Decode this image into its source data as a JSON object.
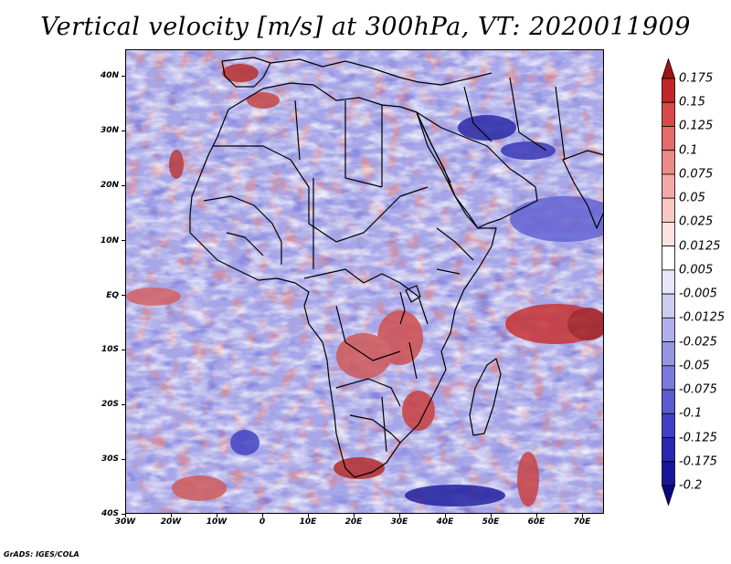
{
  "title": "Vertical velocity [m/s] at 300hPa, VT: 2020011909",
  "credit": "GrADS: IGES/COLA",
  "axes": {
    "latitude_labels": [
      "40N",
      "30N",
      "20N",
      "10N",
      "EQ",
      "10S",
      "20S",
      "30S",
      "40S"
    ],
    "longitude_labels": [
      "30W",
      "20W",
      "10W",
      "0",
      "10E",
      "20E",
      "30E",
      "40E",
      "50E",
      "60E",
      "70E"
    ]
  },
  "map": {
    "lon_range": [
      -30,
      75
    ],
    "lat_range": [
      -40,
      45
    ],
    "field": "vertical velocity",
    "level": "300hPa",
    "valid_time": "2020011909"
  },
  "colorbar": {
    "levels": [
      "0.175",
      "0.15",
      "0.125",
      "0.1",
      "0.075",
      "0.05",
      "0.025",
      "0.0125",
      "0.005",
      "-0.005",
      "-0.0125",
      "-0.025",
      "-0.05",
      "-0.075",
      "-0.1",
      "-0.125",
      "-0.175",
      "-0.2"
    ],
    "colors": [
      "#a11416",
      "#c1272a",
      "#d84a4a",
      "#e46b6a",
      "#ec8a88",
      "#f3a9a6",
      "#f8c8c5",
      "#fce3e1",
      "#ffffff",
      "#e6e6f8",
      "#ccccf0",
      "#b0b0ec",
      "#9595e4",
      "#7a7adc",
      "#5c5cd0",
      "#4040c4",
      "#2828b0",
      "#16169a",
      "#0a0a80"
    ]
  }
}
